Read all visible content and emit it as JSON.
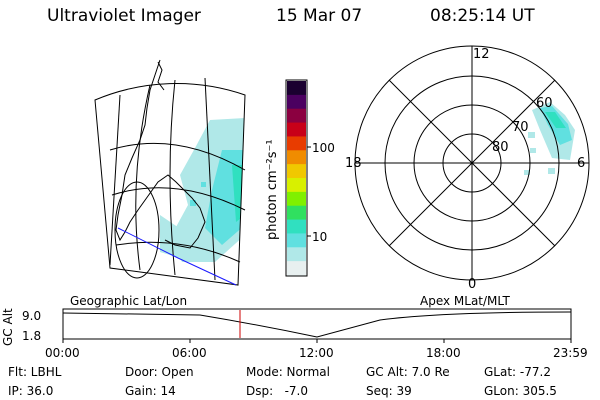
{
  "header": {
    "title": "Ultraviolet Imager",
    "date": "15 Mar 07",
    "time": "08:25:14 UT"
  },
  "colorbar": {
    "label": "photon cm⁻²s⁻¹",
    "ticks": [
      "100",
      "10"
    ],
    "colors": [
      "#1a0030",
      "#4b0060",
      "#8b0040",
      "#c80018",
      "#e83c00",
      "#f08c00",
      "#f0c800",
      "#d8f000",
      "#80f000",
      "#30e060",
      "#30e0c0",
      "#60e0e0",
      "#b0e8e8",
      "#e8f0f0"
    ]
  },
  "geo_map": {
    "caption": "Geographic Lat/Lon"
  },
  "polar_plot": {
    "caption": "Apex MLat/MLT",
    "mlt_labels": [
      "12",
      "18",
      "6",
      "0"
    ],
    "mlat_labels": [
      "60",
      "70",
      "80"
    ]
  },
  "timeline": {
    "axis_label": "GC Alt",
    "y_values": [
      "9.0",
      "1.8"
    ],
    "x_ticks": [
      "00:00",
      "06:00",
      "12:00",
      "18:00",
      "23:59"
    ],
    "marker_color": "#cc0000"
  },
  "status": {
    "filter": "Flt: LBHL",
    "ip": "IP: 36.0",
    "door": "Door: Open",
    "gain": "Gain: 14",
    "mode": "Mode: Normal",
    "dsp": "Dsp:   -7.0",
    "gc_alt": "GC Alt: 7.0 Re",
    "seq": "Seq: 39",
    "glat": "GLat: -77.2",
    "glon": "GLon: 305.5"
  }
}
